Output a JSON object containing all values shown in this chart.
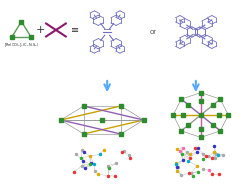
{
  "bg_color": "#ffffff",
  "tri_color": "#5a9a5a",
  "tri_node_color": "#2e8b2e",
  "cross_color": "#8b1a6b",
  "ligand_color": "#7070c0",
  "arrow_color": "#55aaff",
  "node_green": "#2e8b2e",
  "line_gold": "#c8a000",
  "line_purple": "#9060b0",
  "line_pink": "#c060a0",
  "line_gray": "#999999",
  "atom_gray": "#aaaaaa",
  "atom_red": "#ee3333",
  "atom_blue": "#3333cc",
  "atom_yellow": "#ddaa00",
  "atom_green": "#33aa33",
  "atom_cyan": "#00aacc",
  "label_color": "#222222"
}
